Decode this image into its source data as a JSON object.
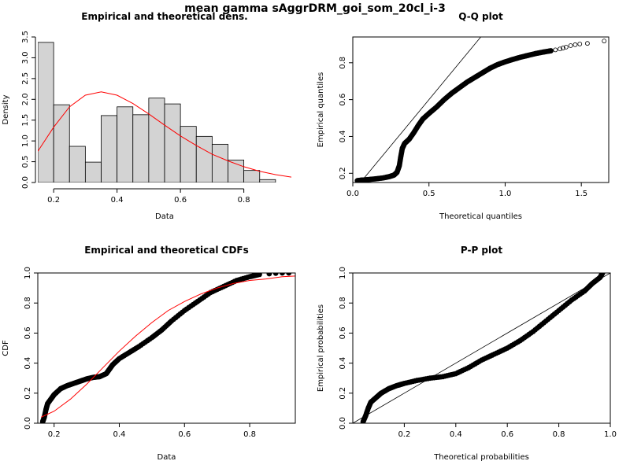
{
  "figure": {
    "title": "mean gamma sAggrDRM_goi_som_20cl_i-3"
  },
  "colors": {
    "theoretical": "#ff0000",
    "empirical": "#000000",
    "bars": "#d3d3d3"
  },
  "chart_data": [
    {
      "id": "density",
      "type": "bar",
      "title": "Empirical and theoretical dens.",
      "xlabel": "Data",
      "ylabel": "Density",
      "xlim": [
        0.15,
        0.95
      ],
      "ylim": [
        0,
        3.5
      ],
      "xticks": [
        0.2,
        0.4,
        0.6,
        0.8
      ],
      "yticks": [
        0.0,
        0.5,
        1.0,
        1.5,
        2.0,
        2.5,
        3.0,
        3.5
      ],
      "bins": [
        {
          "x0": 0.15,
          "x1": 0.2,
          "value": 3.37
        },
        {
          "x0": 0.2,
          "x1": 0.25,
          "value": 1.87
        },
        {
          "x0": 0.25,
          "x1": 0.3,
          "value": 0.87
        },
        {
          "x0": 0.3,
          "x1": 0.35,
          "value": 0.49
        },
        {
          "x0": 0.35,
          "x1": 0.4,
          "value": 1.61
        },
        {
          "x0": 0.4,
          "x1": 0.45,
          "value": 1.82
        },
        {
          "x0": 0.45,
          "x1": 0.5,
          "value": 1.63
        },
        {
          "x0": 0.5,
          "x1": 0.55,
          "value": 2.03
        },
        {
          "x0": 0.55,
          "x1": 0.6,
          "value": 1.89
        },
        {
          "x0": 0.6,
          "x1": 0.65,
          "value": 1.35
        },
        {
          "x0": 0.65,
          "x1": 0.7,
          "value": 1.11
        },
        {
          "x0": 0.7,
          "x1": 0.75,
          "value": 0.92
        },
        {
          "x0": 0.75,
          "x1": 0.8,
          "value": 0.54
        },
        {
          "x0": 0.8,
          "x1": 0.85,
          "value": 0.29
        },
        {
          "x0": 0.85,
          "x1": 0.9,
          "value": 0.07
        }
      ],
      "theoretical_curve": {
        "x": [
          0.15,
          0.2,
          0.25,
          0.3,
          0.35,
          0.4,
          0.45,
          0.5,
          0.55,
          0.6,
          0.65,
          0.7,
          0.75,
          0.8,
          0.85,
          0.9,
          0.95
        ],
        "y": [
          0.75,
          1.33,
          1.82,
          2.1,
          2.18,
          2.1,
          1.9,
          1.65,
          1.38,
          1.12,
          0.89,
          0.68,
          0.52,
          0.38,
          0.27,
          0.19,
          0.13
        ]
      }
    },
    {
      "id": "qq",
      "type": "scatter",
      "title": "Q-Q plot",
      "xlabel": "Theoretical quantiles",
      "ylabel": "Empirical quantiles",
      "xlim": [
        0,
        1.68
      ],
      "ylim": [
        0.15,
        0.94
      ],
      "xticks": [
        0.0,
        0.5,
        1.0,
        1.5
      ],
      "yticks": [
        0.2,
        0.4,
        0.6,
        0.8
      ],
      "points": [
        [
          0.03,
          0.16
        ],
        [
          0.06,
          0.163
        ],
        [
          0.1,
          0.166
        ],
        [
          0.15,
          0.17
        ],
        [
          0.2,
          0.175
        ],
        [
          0.24,
          0.182
        ],
        [
          0.27,
          0.19
        ],
        [
          0.29,
          0.205
        ],
        [
          0.305,
          0.24
        ],
        [
          0.315,
          0.29
        ],
        [
          0.325,
          0.335
        ],
        [
          0.34,
          0.362
        ],
        [
          0.37,
          0.385
        ],
        [
          0.4,
          0.42
        ],
        [
          0.43,
          0.46
        ],
        [
          0.46,
          0.495
        ],
        [
          0.5,
          0.525
        ],
        [
          0.55,
          0.56
        ],
        [
          0.6,
          0.6
        ],
        [
          0.65,
          0.635
        ],
        [
          0.7,
          0.665
        ],
        [
          0.75,
          0.695
        ],
        [
          0.8,
          0.72
        ],
        [
          0.85,
          0.745
        ],
        [
          0.9,
          0.77
        ],
        [
          0.95,
          0.79
        ],
        [
          1.0,
          0.805
        ],
        [
          1.05,
          0.818
        ],
        [
          1.1,
          0.83
        ],
        [
          1.15,
          0.84
        ],
        [
          1.2,
          0.85
        ],
        [
          1.25,
          0.858
        ],
        [
          1.3,
          0.865
        ],
        [
          1.33,
          0.87
        ],
        [
          1.36,
          0.875
        ],
        [
          1.38,
          0.88
        ],
        [
          1.4,
          0.885
        ],
        [
          1.43,
          0.893
        ],
        [
          1.46,
          0.898
        ],
        [
          1.49,
          0.902
        ],
        [
          1.54,
          0.905
        ],
        [
          1.65,
          0.918
        ]
      ],
      "reference_line": [
        [
          0.0,
          0.1
        ],
        [
          0.95,
          1.05
        ]
      ]
    },
    {
      "id": "cdf",
      "type": "line",
      "title": "Empirical and theoretical CDFs",
      "xlabel": "Data",
      "ylabel": "CDF",
      "xlim": [
        0.15,
        0.94
      ],
      "ylim": [
        0,
        1
      ],
      "xticks": [
        0.2,
        0.4,
        0.6,
        0.8
      ],
      "yticks": [
        0.0,
        0.2,
        0.4,
        0.6,
        0.8,
        1.0
      ],
      "empirical": [
        [
          0.165,
          0.01
        ],
        [
          0.17,
          0.04
        ],
        [
          0.175,
          0.09
        ],
        [
          0.18,
          0.13
        ],
        [
          0.19,
          0.16
        ],
        [
          0.2,
          0.19
        ],
        [
          0.22,
          0.23
        ],
        [
          0.24,
          0.25
        ],
        [
          0.26,
          0.265
        ],
        [
          0.28,
          0.28
        ],
        [
          0.3,
          0.295
        ],
        [
          0.32,
          0.305
        ],
        [
          0.34,
          0.31
        ],
        [
          0.36,
          0.33
        ],
        [
          0.37,
          0.36
        ],
        [
          0.38,
          0.39
        ],
        [
          0.4,
          0.43
        ],
        [
          0.43,
          0.47
        ],
        [
          0.46,
          0.51
        ],
        [
          0.5,
          0.57
        ],
        [
          0.53,
          0.62
        ],
        [
          0.56,
          0.68
        ],
        [
          0.6,
          0.75
        ],
        [
          0.64,
          0.81
        ],
        [
          0.68,
          0.87
        ],
        [
          0.72,
          0.91
        ],
        [
          0.76,
          0.95
        ],
        [
          0.8,
          0.975
        ],
        [
          0.83,
          0.99
        ],
        [
          0.86,
          0.995
        ],
        [
          0.88,
          0.998
        ],
        [
          0.9,
          1.0
        ],
        [
          0.92,
          1.0
        ]
      ],
      "outlier_points": [
        [
          0.86,
          1.0
        ],
        [
          0.88,
          1.0
        ],
        [
          0.9,
          1.0
        ],
        [
          0.92,
          1.0
        ]
      ],
      "theoretical": [
        [
          0.16,
          0.04
        ],
        [
          0.2,
          0.08
        ],
        [
          0.25,
          0.16
        ],
        [
          0.3,
          0.26
        ],
        [
          0.35,
          0.37
        ],
        [
          0.4,
          0.48
        ],
        [
          0.45,
          0.58
        ],
        [
          0.5,
          0.67
        ],
        [
          0.55,
          0.75
        ],
        [
          0.6,
          0.81
        ],
        [
          0.65,
          0.86
        ],
        [
          0.7,
          0.9
        ],
        [
          0.75,
          0.93
        ],
        [
          0.8,
          0.95
        ],
        [
          0.85,
          0.96
        ],
        [
          0.9,
          0.975
        ],
        [
          0.94,
          0.98
        ]
      ]
    },
    {
      "id": "pp",
      "type": "scatter",
      "title": "P-P plot",
      "xlabel": "Theoretical probabilities",
      "ylabel": "Empirical probabilities",
      "xlim": [
        0,
        1
      ],
      "ylim": [
        0,
        1
      ],
      "xticks": [
        0.2,
        0.4,
        0.6,
        0.8,
        1.0
      ],
      "yticks": [
        0.0,
        0.2,
        0.4,
        0.6,
        0.8,
        1.0
      ],
      "points": [
        [
          0.04,
          0.01
        ],
        [
          0.05,
          0.05
        ],
        [
          0.06,
          0.1
        ],
        [
          0.07,
          0.14
        ],
        [
          0.09,
          0.17
        ],
        [
          0.11,
          0.2
        ],
        [
          0.14,
          0.23
        ],
        [
          0.17,
          0.25
        ],
        [
          0.2,
          0.265
        ],
        [
          0.25,
          0.285
        ],
        [
          0.3,
          0.3
        ],
        [
          0.35,
          0.31
        ],
        [
          0.4,
          0.33
        ],
        [
          0.45,
          0.37
        ],
        [
          0.5,
          0.42
        ],
        [
          0.55,
          0.46
        ],
        [
          0.6,
          0.5
        ],
        [
          0.65,
          0.55
        ],
        [
          0.7,
          0.61
        ],
        [
          0.75,
          0.68
        ],
        [
          0.8,
          0.75
        ],
        [
          0.85,
          0.82
        ],
        [
          0.9,
          0.88
        ],
        [
          0.93,
          0.93
        ],
        [
          0.96,
          0.97
        ],
        [
          0.97,
          1.0
        ]
      ],
      "reference_line": [
        [
          0.0,
          0.0
        ],
        [
          1.0,
          1.0
        ]
      ]
    }
  ]
}
